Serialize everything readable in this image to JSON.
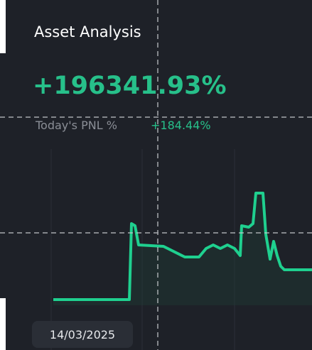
{
  "header": {
    "title": "Asset Analysis"
  },
  "pnl": {
    "total": "+196341.93%",
    "today_label": "Today's PNL %",
    "today_value": "+184.44%"
  },
  "chart": {
    "date_label": "14/03/2025"
  }
}
